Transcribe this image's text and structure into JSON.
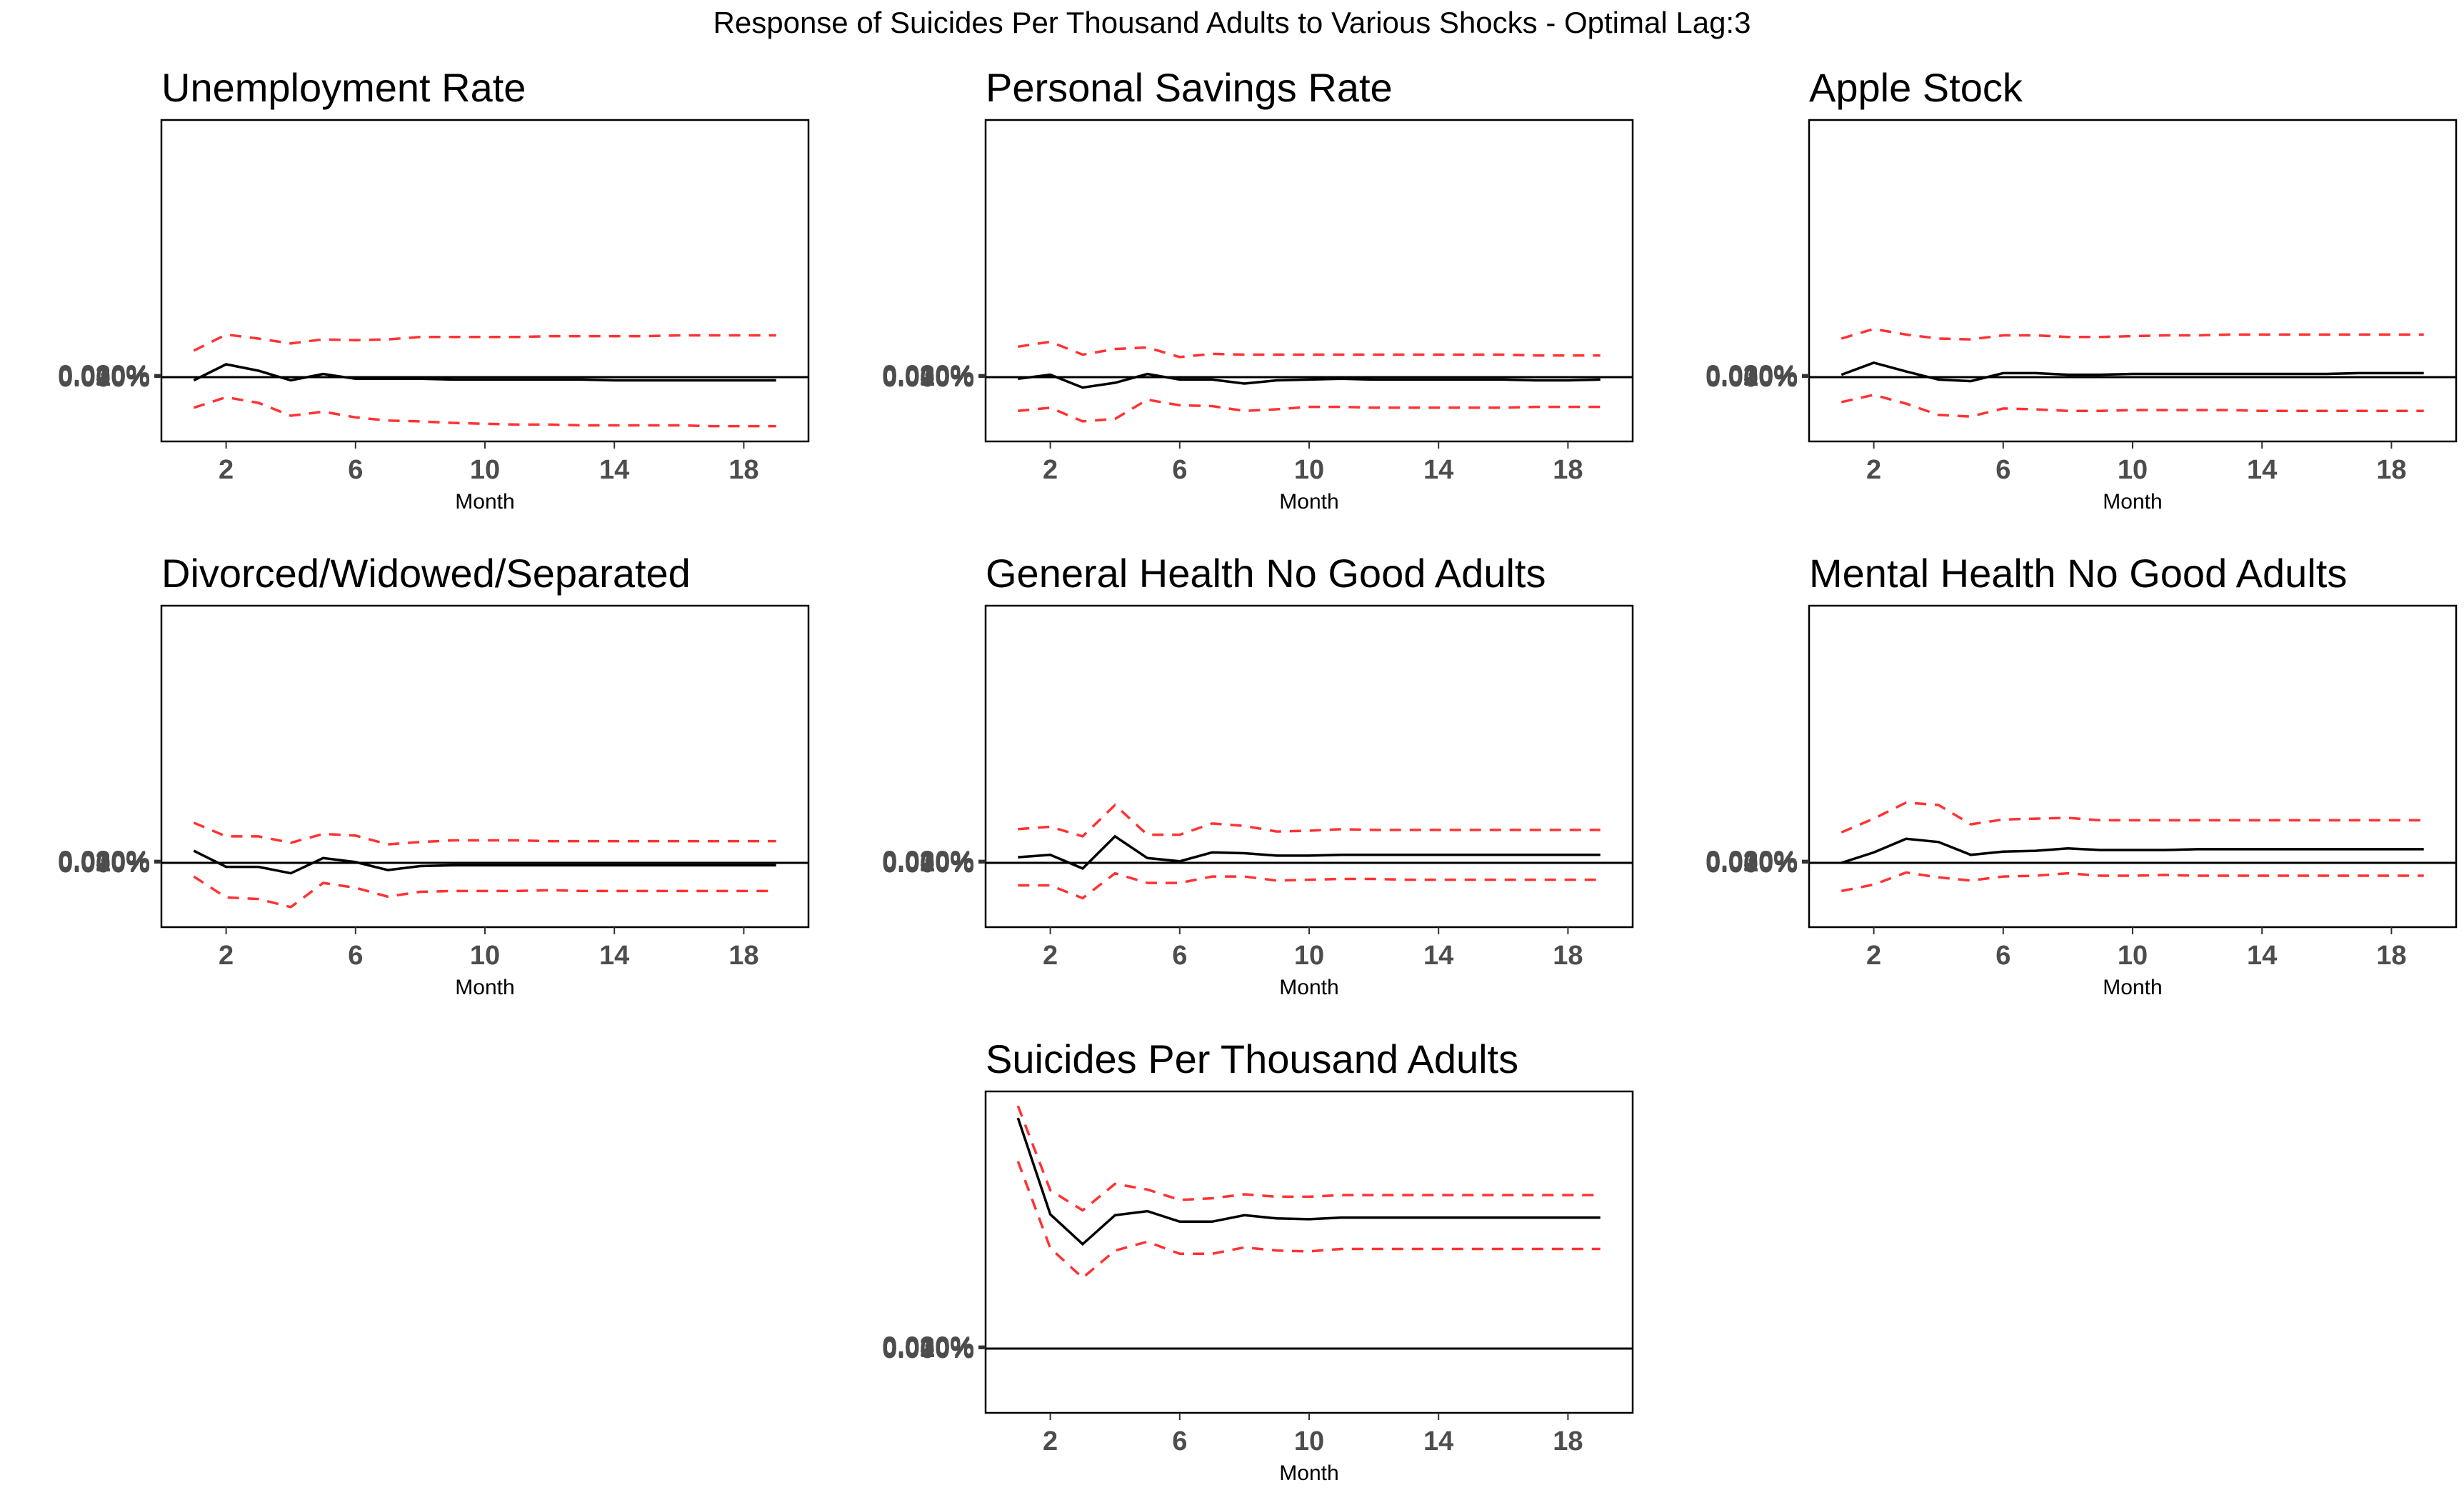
{
  "figure": {
    "title": "Response of Suicides Per Thousand Adults to Various Shocks - Optimal Lag:3"
  },
  "colors": {
    "response": "#000000",
    "ci": "#ff3333",
    "zero_line": "#000000",
    "tick_text": "#4d4d4d"
  },
  "chart_data": [
    {
      "type": "line",
      "title": "Unemployment Rate",
      "xlabel": "Month",
      "ylabel": "",
      "x_ticks": [
        2,
        6,
        10,
        14,
        18
      ],
      "y_ticks": [
        "0.000%",
        "0.010%",
        "0.020%",
        "0.030%"
      ],
      "ylim": [
        -0.008,
        0.032
      ],
      "xlim": [
        0,
        20
      ],
      "x": [
        1,
        2,
        3,
        4,
        5,
        6,
        7,
        8,
        9,
        10,
        11,
        12,
        13,
        14,
        15,
        16,
        17,
        18,
        19
      ],
      "series": [
        {
          "role": "response",
          "values": [
            -0.0004,
            0.0016,
            0.0008,
            -0.0004,
            0.0004,
            -0.0002,
            -0.0002,
            -0.0002,
            -0.0003,
            -0.0003,
            -0.0003,
            -0.0003,
            -0.0003,
            -0.0004,
            -0.0004,
            -0.0004,
            -0.0004,
            -0.0004,
            -0.0004
          ]
        },
        {
          "role": "upper",
          "values": [
            0.0033,
            0.0053,
            0.0048,
            0.0042,
            0.0047,
            0.0046,
            0.0047,
            0.005,
            0.005,
            0.005,
            0.005,
            0.0051,
            0.0051,
            0.0051,
            0.0051,
            0.0052,
            0.0052,
            0.0052,
            0.0052
          ]
        },
        {
          "role": "lower",
          "values": [
            -0.0038,
            -0.0025,
            -0.0032,
            -0.0048,
            -0.0043,
            -0.005,
            -0.0054,
            -0.0055,
            -0.0057,
            -0.0058,
            -0.0059,
            -0.0059,
            -0.006,
            -0.006,
            -0.006,
            -0.006,
            -0.0061,
            -0.0061,
            -0.0061
          ]
        }
      ]
    },
    {
      "type": "line",
      "title": "Personal Savings Rate",
      "xlabel": "Month",
      "ylabel": "",
      "x_ticks": [
        2,
        6,
        10,
        14,
        18
      ],
      "y_ticks": [
        "0.000%",
        "0.010%",
        "0.020%",
        "0.030%"
      ],
      "ylim": [
        -0.008,
        0.032
      ],
      "xlim": [
        0,
        20
      ],
      "x": [
        1,
        2,
        3,
        4,
        5,
        6,
        7,
        8,
        9,
        10,
        11,
        12,
        13,
        14,
        15,
        16,
        17,
        18,
        19
      ],
      "series": [
        {
          "role": "response",
          "values": [
            -0.0002,
            0.0003,
            -0.0013,
            -0.0007,
            0.0004,
            -0.0003,
            -0.0003,
            -0.0008,
            -0.0004,
            -0.0003,
            -0.0002,
            -0.0003,
            -0.0003,
            -0.0003,
            -0.0003,
            -0.0003,
            -0.0004,
            -0.0004,
            -0.0003
          ]
        },
        {
          "role": "upper",
          "values": [
            0.0038,
            0.0044,
            0.0028,
            0.0035,
            0.0037,
            0.0025,
            0.0029,
            0.0028,
            0.0028,
            0.0028,
            0.0028,
            0.0028,
            0.0028,
            0.0028,
            0.0028,
            0.0028,
            0.0027,
            0.0027,
            0.0027
          ]
        },
        {
          "role": "lower",
          "values": [
            -0.0042,
            -0.0038,
            -0.0055,
            -0.0052,
            -0.0028,
            -0.0035,
            -0.0036,
            -0.0042,
            -0.004,
            -0.0037,
            -0.0037,
            -0.0038,
            -0.0038,
            -0.0038,
            -0.0038,
            -0.0038,
            -0.0037,
            -0.0037,
            -0.0037
          ]
        }
      ]
    },
    {
      "type": "line",
      "title": "Apple Stock",
      "xlabel": "Month",
      "ylabel": "",
      "x_ticks": [
        2,
        6,
        10,
        14,
        18
      ],
      "y_ticks": [
        "0.000%",
        "0.010%",
        "0.020%",
        "0.030%"
      ],
      "ylim": [
        -0.008,
        0.032
      ],
      "xlim": [
        0,
        20
      ],
      "x": [
        1,
        2,
        3,
        4,
        5,
        6,
        7,
        8,
        9,
        10,
        11,
        12,
        13,
        14,
        15,
        16,
        17,
        18,
        19
      ],
      "series": [
        {
          "role": "response",
          "values": [
            0.0003,
            0.0018,
            0.0007,
            -0.0003,
            -0.0005,
            0.0005,
            0.0005,
            0.0003,
            0.0003,
            0.0004,
            0.0004,
            0.0004,
            0.0004,
            0.0004,
            0.0004,
            0.0004,
            0.0005,
            0.0005,
            0.0005
          ]
        },
        {
          "role": "upper",
          "values": [
            0.0048,
            0.006,
            0.0053,
            0.0048,
            0.0047,
            0.0052,
            0.0052,
            0.005,
            0.005,
            0.0051,
            0.0052,
            0.0052,
            0.0053,
            0.0053,
            0.0053,
            0.0053,
            0.0053,
            0.0053,
            0.0053
          ]
        },
        {
          "role": "lower",
          "values": [
            -0.0031,
            -0.0022,
            -0.0033,
            -0.0047,
            -0.0049,
            -0.0039,
            -0.004,
            -0.0042,
            -0.0042,
            -0.0041,
            -0.0041,
            -0.0041,
            -0.0041,
            -0.0042,
            -0.0042,
            -0.0042,
            -0.0042,
            -0.0042,
            -0.0042
          ]
        }
      ]
    },
    {
      "type": "line",
      "title": "Divorced/Widowed/Separated",
      "xlabel": "Month",
      "ylabel": "",
      "x_ticks": [
        2,
        6,
        10,
        14,
        18
      ],
      "y_ticks": [
        "0.000%",
        "0.010%",
        "0.020%",
        "0.030%"
      ],
      "ylim": [
        -0.008,
        0.032
      ],
      "xlim": [
        0,
        20
      ],
      "x": [
        1,
        2,
        3,
        4,
        5,
        6,
        7,
        8,
        9,
        10,
        11,
        12,
        13,
        14,
        15,
        16,
        17,
        18,
        19
      ],
      "series": [
        {
          "role": "response",
          "values": [
            0.0015,
            -0.0005,
            -0.0005,
            -0.0013,
            0.0006,
            0.0001,
            -0.0009,
            -0.0004,
            -0.0003,
            -0.0003,
            -0.0003,
            -0.0003,
            -0.0003,
            -0.0003,
            -0.0003,
            -0.0003,
            -0.0003,
            -0.0003,
            -0.0003
          ]
        },
        {
          "role": "upper",
          "values": [
            0.005,
            0.0033,
            0.0033,
            0.0025,
            0.0036,
            0.0034,
            0.0023,
            0.0026,
            0.0028,
            0.0028,
            0.0028,
            0.0027,
            0.0027,
            0.0027,
            0.0027,
            0.0027,
            0.0027,
            0.0027,
            0.0027
          ]
        },
        {
          "role": "lower",
          "values": [
            -0.0017,
            -0.0043,
            -0.0045,
            -0.0055,
            -0.0025,
            -0.0031,
            -0.0042,
            -0.0036,
            -0.0035,
            -0.0035,
            -0.0035,
            -0.0034,
            -0.0035,
            -0.0035,
            -0.0035,
            -0.0035,
            -0.0035,
            -0.0035,
            -0.0035
          ]
        }
      ]
    },
    {
      "type": "line",
      "title": "General Health No Good Adults",
      "xlabel": "Month",
      "ylabel": "",
      "x_ticks": [
        2,
        6,
        10,
        14,
        18
      ],
      "y_ticks": [
        "0.000%",
        "0.010%",
        "0.020%",
        "0.030%"
      ],
      "ylim": [
        -0.008,
        0.032
      ],
      "xlim": [
        0,
        20
      ],
      "x": [
        1,
        2,
        3,
        4,
        5,
        6,
        7,
        8,
        9,
        10,
        11,
        12,
        13,
        14,
        15,
        16,
        17,
        18,
        19
      ],
      "series": [
        {
          "role": "response",
          "values": [
            0.0007,
            0.001,
            -0.0007,
            0.0033,
            0.0006,
            0.0002,
            0.0013,
            0.0012,
            0.0009,
            0.0009,
            0.001,
            0.001,
            0.001,
            0.001,
            0.001,
            0.001,
            0.001,
            0.001,
            0.001
          ]
        },
        {
          "role": "upper",
          "values": [
            0.0042,
            0.0045,
            0.0033,
            0.0072,
            0.0035,
            0.0035,
            0.0049,
            0.0046,
            0.0039,
            0.004,
            0.0042,
            0.0041,
            0.0041,
            0.0041,
            0.0041,
            0.0041,
            0.0041,
            0.0041,
            0.0041
          ]
        },
        {
          "role": "lower",
          "values": [
            -0.0028,
            -0.0028,
            -0.0044,
            -0.0013,
            -0.0025,
            -0.0025,
            -0.0017,
            -0.0017,
            -0.0022,
            -0.0021,
            -0.002,
            -0.002,
            -0.0021,
            -0.0021,
            -0.0021,
            -0.0021,
            -0.0021,
            -0.0021,
            -0.0021
          ]
        }
      ]
    },
    {
      "type": "line",
      "title": "Mental Health No Good Adults",
      "xlabel": "Month",
      "ylabel": "",
      "x_ticks": [
        2,
        6,
        10,
        14,
        18
      ],
      "y_ticks": [
        "0.000%",
        "0.010%",
        "0.020%",
        "0.030%"
      ],
      "ylim": [
        -0.008,
        0.032
      ],
      "xlim": [
        0,
        20
      ],
      "x": [
        1,
        2,
        3,
        4,
        5,
        6,
        7,
        8,
        9,
        10,
        11,
        12,
        13,
        14,
        15,
        16,
        17,
        18,
        19
      ],
      "series": [
        {
          "role": "response",
          "values": [
            0.0,
            0.0013,
            0.003,
            0.0026,
            0.001,
            0.0014,
            0.0015,
            0.0018,
            0.0016,
            0.0016,
            0.0016,
            0.0017,
            0.0017,
            0.0017,
            0.0017,
            0.0017,
            0.0017,
            0.0017,
            0.0017
          ]
        },
        {
          "role": "upper",
          "values": [
            0.0038,
            0.0055,
            0.0075,
            0.0072,
            0.0048,
            0.0054,
            0.0055,
            0.0056,
            0.0053,
            0.0053,
            0.0053,
            0.0053,
            0.0053,
            0.0053,
            0.0053,
            0.0053,
            0.0053,
            0.0053,
            0.0053
          ]
        },
        {
          "role": "lower",
          "values": [
            -0.0035,
            -0.0027,
            -0.0012,
            -0.0018,
            -0.0022,
            -0.0017,
            -0.0016,
            -0.0013,
            -0.0016,
            -0.0016,
            -0.0015,
            -0.0016,
            -0.0016,
            -0.0016,
            -0.0016,
            -0.0016,
            -0.0016,
            -0.0016,
            -0.0016
          ]
        }
      ]
    },
    {
      "type": "line",
      "title": "Suicides Per Thousand Adults",
      "xlabel": "Month",
      "ylabel": "",
      "x_ticks": [
        2,
        6,
        10,
        14,
        18
      ],
      "y_ticks": [
        "0.000%",
        "0.010%",
        "0.020%",
        "0.030%"
      ],
      "ylim": [
        -0.008,
        0.032
      ],
      "xlim": [
        0,
        20
      ],
      "x": [
        1,
        2,
        3,
        4,
        5,
        6,
        7,
        8,
        9,
        10,
        11,
        12,
        13,
        14,
        15,
        16,
        17,
        18,
        19
      ],
      "series": [
        {
          "role": "response",
          "values": [
            0.0287,
            0.0167,
            0.013,
            0.0166,
            0.0171,
            0.0158,
            0.0158,
            0.0166,
            0.0162,
            0.0161,
            0.0163,
            0.0163,
            0.0163,
            0.0163,
            0.0163,
            0.0163,
            0.0163,
            0.0163,
            0.0163
          ]
        },
        {
          "role": "upper",
          "values": [
            0.0302,
            0.0197,
            0.0172,
            0.0205,
            0.0198,
            0.0185,
            0.0187,
            0.0192,
            0.0189,
            0.0189,
            0.0191,
            0.0191,
            0.0191,
            0.0191,
            0.0191,
            0.0191,
            0.0191,
            0.0191,
            0.0191
          ]
        },
        {
          "role": "lower",
          "values": [
            0.0233,
            0.0125,
            0.0088,
            0.0122,
            0.0133,
            0.0118,
            0.0118,
            0.0126,
            0.0122,
            0.0121,
            0.0124,
            0.0124,
            0.0124,
            0.0124,
            0.0124,
            0.0124,
            0.0124,
            0.0124,
            0.0124
          ]
        }
      ]
    }
  ]
}
